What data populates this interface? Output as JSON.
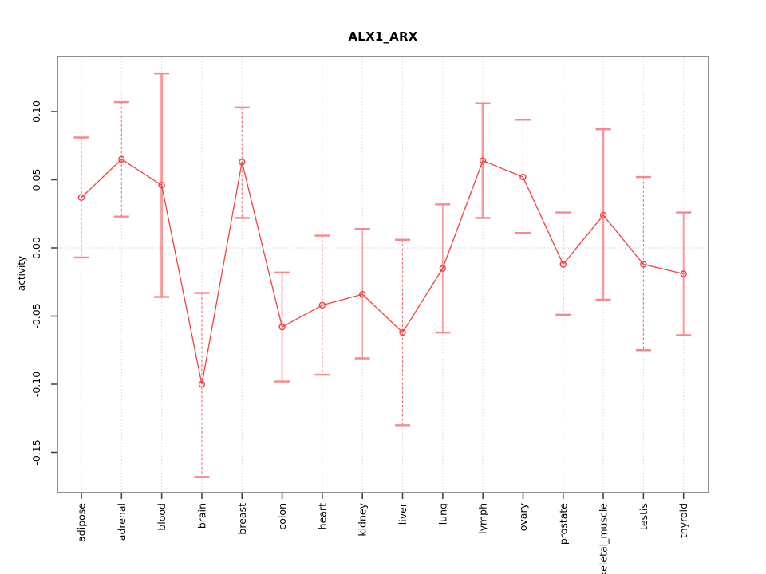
{
  "title": "ALX1_ARX",
  "chart_data": {
    "type": "line",
    "title": "ALX1_ARX",
    "xlabel": "",
    "ylabel": "activity",
    "legend_position": "none",
    "marker": "open-circle",
    "categories": [
      "adipose",
      "adrenal",
      "blood",
      "brain",
      "breast",
      "colon",
      "heart",
      "kidney",
      "liver",
      "lung",
      "lymph",
      "ovary",
      "prostate",
      "skeletal_muscle",
      "testis",
      "thyroid"
    ],
    "series": [
      {
        "name": "activity",
        "values": [
          0.037,
          0.065,
          0.046,
          -0.1,
          0.063,
          -0.058,
          -0.042,
          -0.034,
          -0.062,
          -0.015,
          0.064,
          0.052,
          -0.012,
          0.024,
          -0.012,
          -0.019
        ],
        "lower": [
          -0.007,
          0.023,
          -0.036,
          -0.168,
          0.022,
          -0.098,
          -0.093,
          -0.081,
          -0.13,
          -0.062,
          0.022,
          0.011,
          -0.049,
          -0.038,
          -0.075,
          -0.064
        ],
        "upper": [
          0.081,
          0.107,
          0.128,
          -0.033,
          0.103,
          -0.018,
          0.009,
          0.014,
          0.006,
          0.032,
          0.106,
          0.094,
          0.026,
          0.087,
          0.052,
          0.026
        ]
      }
    ],
    "error_bar_line_style": [
      "dashed",
      "dashed",
      "solid",
      "dashed",
      "dashed",
      "solid",
      "dashed",
      "solid",
      "dashed",
      "solid",
      "solid",
      "dashed",
      "dashed",
      "solid",
      "dashed",
      "solid"
    ],
    "error_bar_line_width": [
      1.1,
      1.1,
      3,
      1.1,
      1.1,
      1.7,
      1.1,
      1.4,
      1.1,
      1.7,
      3,
      1.1,
      1.1,
      2.4,
      1.1,
      2
    ],
    "yticks": [
      "0.10",
      "0.05",
      "0.00",
      "-0.05",
      "-0.10",
      "-0.15"
    ],
    "ytick_values": [
      0.1,
      0.05,
      0.0,
      -0.05,
      -0.1,
      -0.15
    ],
    "ylim": [
      -0.1795,
      0.1404
    ],
    "grid": {
      "vertical_dotted_per_category": true,
      "horizontal_dotted_zero_line": true
    }
  },
  "colors": {
    "series_line": "#f54040",
    "marker_stroke": "#f53d3d",
    "error_bar_solid": "#f89a9a",
    "error_bar_dashed": "#f76b6b",
    "error_bar_cap": "#f98888",
    "grid_line": "#d8d8d8",
    "zero_line": "#d6cfcf",
    "plot_frame": "#8f8f8f",
    "text": "#000000"
  }
}
